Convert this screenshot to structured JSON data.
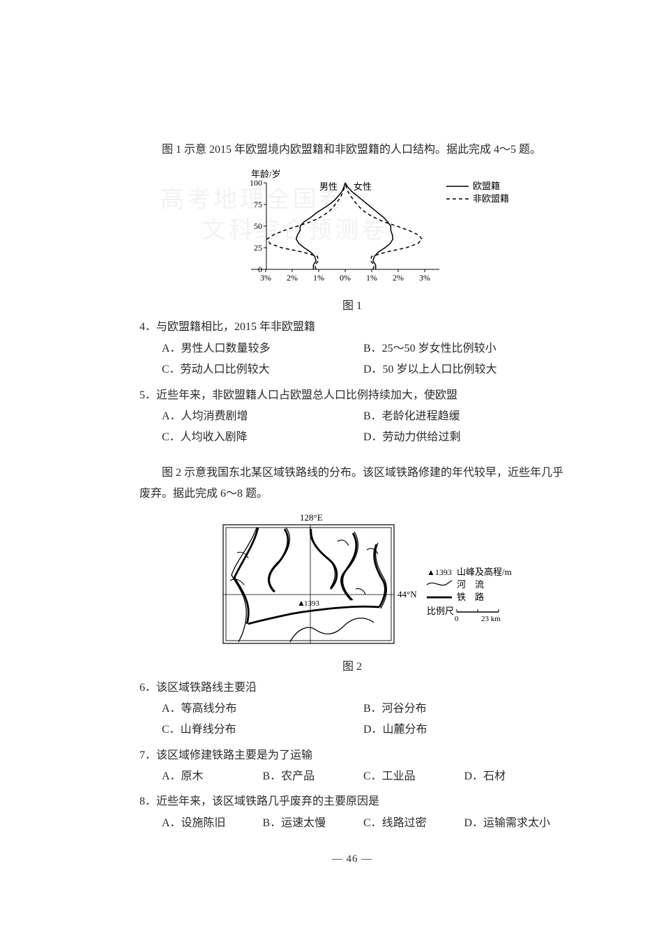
{
  "watermark": {
    "line1": "高考地理全国卷",
    "line2": "文科综合预测卷"
  },
  "section1": {
    "intro": "图 1 示意 2015 年欧盟境内欧盟籍和非欧盟籍的人口结构。据此完成 4～5 题。",
    "fig_caption": "图 1",
    "chart": {
      "type": "population_pyramid",
      "y_axis_title": "年龄/岁",
      "y_ticks": [
        0,
        25,
        50,
        75,
        100
      ],
      "y_label_fontsize": 12,
      "x_ticks": [
        "3%",
        "2%",
        "1%",
        "0%",
        "1%",
        "2%",
        "3%"
      ],
      "x_label_fontsize": 12,
      "center_labels": {
        "left": "男性",
        "right": "女性"
      },
      "legend": {
        "items": [
          {
            "label": "欧盟籍",
            "style": "solid"
          },
          {
            "label": "非欧盟籍",
            "style": "dashed"
          }
        ],
        "fontsize": 13
      },
      "line_width": 1.5,
      "line_color": "#000000",
      "background_color": "#ffffff",
      "axis_color": "#000000",
      "eu_solid_pct_by_age": {
        "male": [
          1.2,
          1.2,
          1.1,
          1.15,
          1.3,
          1.55,
          1.75,
          1.85,
          1.8,
          1.7,
          1.7,
          1.55,
          1.3,
          1.1,
          0.85,
          0.6,
          0.4,
          0.25,
          0.12,
          0.05,
          0.0
        ],
        "female": [
          1.15,
          1.15,
          1.05,
          1.1,
          1.25,
          1.5,
          1.7,
          1.8,
          1.78,
          1.72,
          1.72,
          1.6,
          1.45,
          1.25,
          1.05,
          0.85,
          0.65,
          0.45,
          0.25,
          0.1,
          0.0
        ]
      },
      "noneu_dashed_pct_by_age": {
        "male": [
          1.1,
          1.15,
          1.0,
          1.05,
          1.6,
          2.4,
          2.85,
          2.95,
          2.7,
          2.3,
          1.8,
          1.3,
          0.95,
          0.7,
          0.5,
          0.38,
          0.25,
          0.15,
          0.08,
          0.03,
          0.0
        ],
        "female": [
          1.05,
          1.1,
          0.95,
          1.0,
          1.55,
          2.3,
          2.75,
          2.9,
          2.75,
          2.4,
          1.95,
          1.45,
          1.1,
          0.8,
          0.6,
          0.45,
          0.32,
          0.2,
          0.1,
          0.04,
          0.0
        ]
      },
      "age_step": 5
    },
    "q4": {
      "stem": "4．与欧盟籍相比，2015 年非欧盟籍",
      "options": {
        "A": "A．男性人口数量较多",
        "B": "B．25～50 岁女性比例较小",
        "C": "C．劳动人口比例较大",
        "D": "D．50 岁以上人口比例较大"
      }
    },
    "q5": {
      "stem": "5．近些年来，非欧盟籍人口占欧盟总人口比例持续加大，使欧盟",
      "options": {
        "A": "A．人均消费剧增",
        "B": "B．老龄化进程趋缓",
        "C": "C．人均收入剧降",
        "D": "D．劳动力供给过剩"
      }
    }
  },
  "section2": {
    "intro": "图 2 示意我国东北某区域铁路线的分布。该区域铁路修建的年代较早，近些年几乎废弃。据此完成 6～8 题。",
    "fig_caption": "图 2",
    "map": {
      "type": "schematic_map",
      "lon_label": "128°E",
      "lat_label": "44°N",
      "legend": {
        "peak": {
          "symbol": "▲1393",
          "label": "山峰及高程/m"
        },
        "river": {
          "label": "河　流"
        },
        "rail": {
          "label": "铁　路"
        },
        "scale": {
          "label": "比例尺",
          "values": [
            "0",
            "23 km"
          ]
        }
      },
      "peak_shown": {
        "symbol": "▲",
        "elev": "1393"
      },
      "line_color": "#000000",
      "rail_width": 2.8,
      "river_width": 1.3,
      "frame_width": 1.2,
      "inner_frame_width": 0.9,
      "crosshair_width": 0.8,
      "background_color": "#ffffff"
    },
    "q6": {
      "stem": "6．该区域铁路线主要沿",
      "options": {
        "A": "A．等高线分布",
        "B": "B．河谷分布",
        "C": "C．山脊线分布",
        "D": "D．山麓分布"
      }
    },
    "q7": {
      "stem": "7．该区域修建铁路主要是为了运输",
      "options": {
        "A": "A．原木",
        "B": "B．农产品",
        "C": "C．工业品",
        "D": "D．石材"
      }
    },
    "q8": {
      "stem": "8．近些年来，该区域铁路几乎废弃的主要原因是",
      "options": {
        "A": "A．设施陈旧",
        "B": "B．运速太慢",
        "C": "C．线路过密",
        "D": "D．运输需求太小"
      }
    }
  },
  "footer": "— 46 —"
}
